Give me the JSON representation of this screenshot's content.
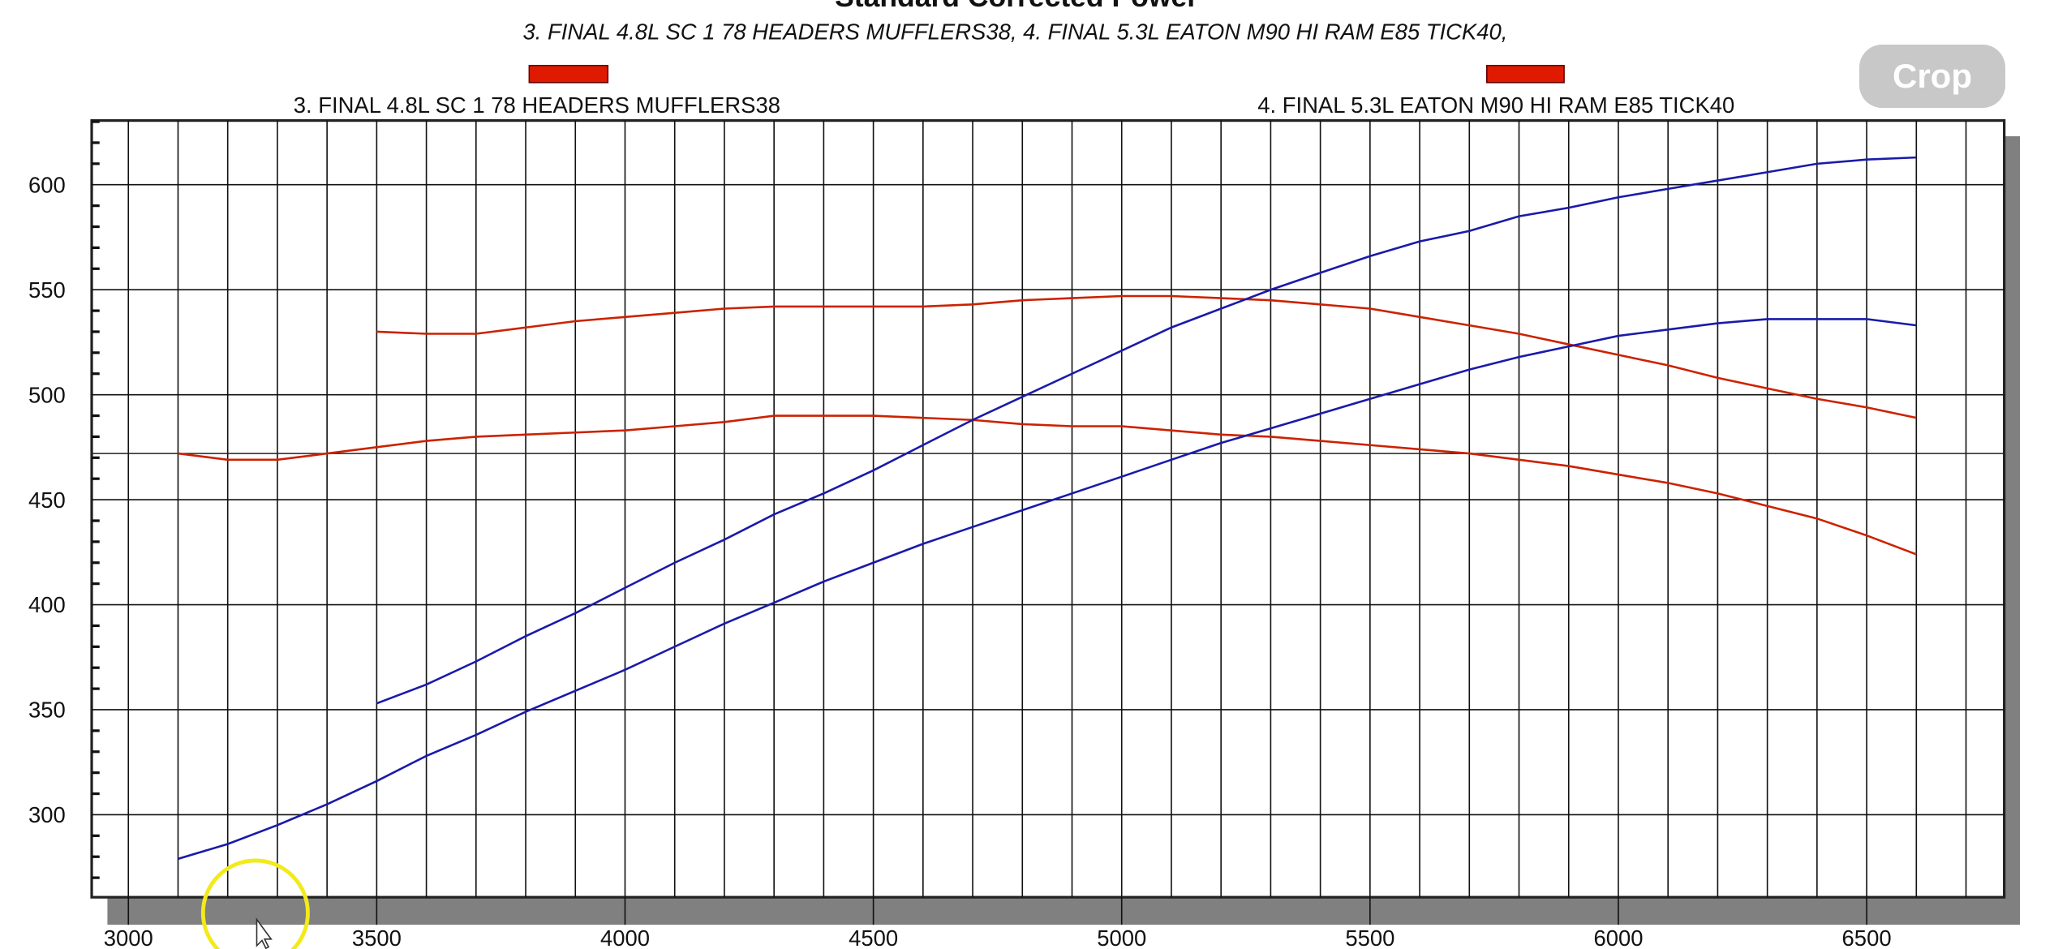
{
  "chart_data": {
    "type": "line",
    "title": "Standard Corrected Power",
    "subtitle": "3. FINAL 4.8L SC 1 78 HEADERS MUFFLERS38, 4. FINAL 5.3L EATON M90 HI RAM E85 TICK40,",
    "legend": [
      {
        "label": "3. FINAL 4.8L SC 1 78 HEADERS MUFFLERS38",
        "color": "#e01a00"
      },
      {
        "label": "4. FINAL 5.3L EATON M90 HI RAM E85 TICK40",
        "color": "#e01a00"
      }
    ],
    "legend_placement": "top",
    "xlim": [
      2925,
      6850
    ],
    "ylim": [
      260,
      630
    ],
    "x_ticks": [
      3000,
      3500,
      4000,
      4500,
      5000,
      5500,
      6000,
      6500
    ],
    "y_ticks": [
      300,
      350,
      400,
      450,
      500,
      550,
      600
    ],
    "grid": true,
    "cursor_y": 472,
    "x": [
      3100,
      3200,
      3300,
      3400,
      3500,
      3600,
      3700,
      3800,
      3900,
      4000,
      4100,
      4200,
      4300,
      4400,
      4500,
      4600,
      4700,
      4800,
      4900,
      5000,
      5100,
      5200,
      5300,
      5400,
      5500,
      5600,
      5700,
      5800,
      5900,
      6000,
      6100,
      6200,
      6300,
      6400,
      6500,
      6600
    ],
    "series": [
      {
        "color": "#cc2200",
        "values": [
          null,
          null,
          null,
          null,
          530,
          529,
          529,
          532,
          535,
          537,
          539,
          541,
          542,
          542,
          542,
          542,
          543,
          545,
          546,
          547,
          547,
          546,
          545,
          543,
          541,
          537,
          533,
          529,
          524,
          519,
          514,
          508,
          503,
          498,
          494,
          489
        ]
      },
      {
        "color": "#cc2200",
        "values": [
          472,
          469,
          469,
          472,
          475,
          478,
          480,
          481,
          482,
          483,
          485,
          487,
          490,
          490,
          490,
          489,
          488,
          486,
          485,
          485,
          483,
          481,
          480,
          478,
          476,
          474,
          472,
          469,
          466,
          462,
          458,
          453,
          447,
          441,
          433,
          424
        ]
      },
      {
        "color": "#1a1aaa",
        "values": [
          null,
          null,
          null,
          null,
          353,
          362,
          373,
          385,
          396,
          408,
          420,
          431,
          443,
          453,
          464,
          476,
          488,
          499,
          510,
          521,
          532,
          541,
          550,
          558,
          566,
          573,
          578,
          585,
          589,
          594,
          598,
          602,
          606,
          610,
          612,
          613
        ]
      },
      {
        "color": "#1a1aaa",
        "values": [
          279,
          286,
          295,
          305,
          316,
          328,
          338,
          349,
          359,
          369,
          380,
          391,
          401,
          411,
          420,
          429,
          437,
          445,
          453,
          461,
          469,
          477,
          484,
          491,
          498,
          505,
          512,
          518,
          523,
          528,
          531,
          534,
          536,
          536,
          536,
          533
        ]
      }
    ]
  },
  "toolbar": {
    "crop_label": "Crop"
  }
}
